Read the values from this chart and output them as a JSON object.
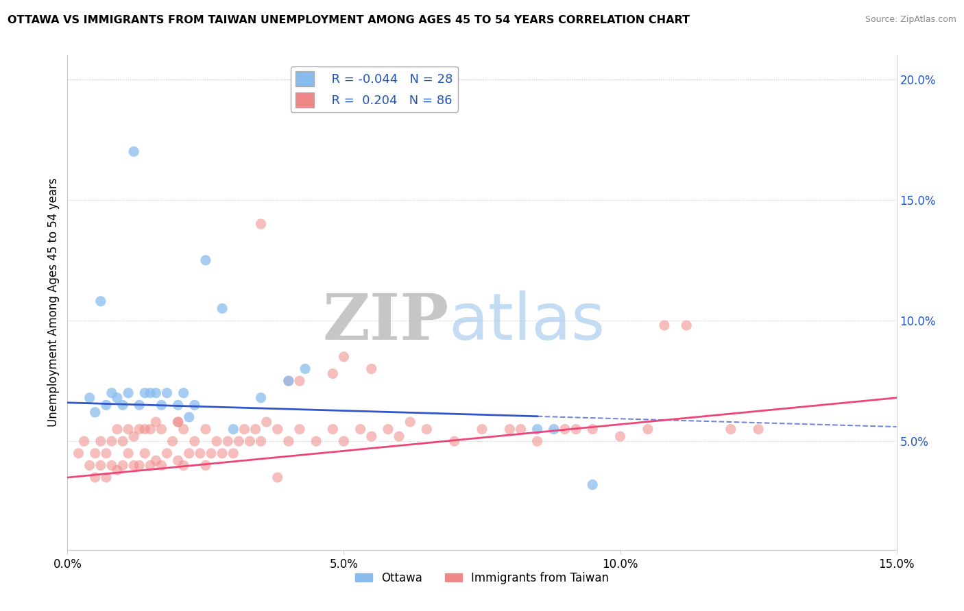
{
  "title": "OTTAWA VS IMMIGRANTS FROM TAIWAN UNEMPLOYMENT AMONG AGES 45 TO 54 YEARS CORRELATION CHART",
  "source": "Source: ZipAtlas.com",
  "xlabel_vals": [
    0.0,
    5.0,
    10.0,
    15.0
  ],
  "ylabel_vals": [
    5.0,
    10.0,
    15.0,
    20.0
  ],
  "xmin": 0.0,
  "xmax": 15.0,
  "ymin": 0.5,
  "ymax": 21.0,
  "ylabel": "Unemployment Among Ages 45 to 54 years",
  "legend_ottawa_R": "-0.044",
  "legend_ottawa_N": "28",
  "legend_taiwan_R": "0.204",
  "legend_taiwan_N": "86",
  "ottawa_color": "#88bbee",
  "taiwan_color": "#f08888",
  "ottawa_line_color": "#3355cc",
  "taiwan_line_color": "#ee4477",
  "ottawa_line_dash_color": "#88aadd",
  "ottawa_trend_start_y": 6.6,
  "ottawa_trend_end_y": 5.6,
  "taiwan_trend_start_y": 3.5,
  "taiwan_trend_end_y": 6.8,
  "ottawa_dash_start_x": 8.5,
  "ottawa_points_x": [
    1.2,
    0.6,
    1.0,
    0.4,
    0.5,
    0.7,
    0.8,
    0.9,
    1.1,
    1.3,
    1.4,
    1.5,
    1.6,
    1.7,
    1.8,
    2.0,
    2.1,
    2.2,
    2.3,
    2.5,
    2.8,
    3.0,
    3.5,
    4.0,
    4.3,
    8.5,
    8.8,
    9.5
  ],
  "ottawa_points_y": [
    17.0,
    10.8,
    6.5,
    6.8,
    6.2,
    6.5,
    7.0,
    6.8,
    7.0,
    6.5,
    7.0,
    7.0,
    7.0,
    6.5,
    7.0,
    6.5,
    7.0,
    6.0,
    6.5,
    12.5,
    10.5,
    5.5,
    6.8,
    7.5,
    8.0,
    5.5,
    5.5,
    3.2
  ],
  "taiwan_points_x": [
    0.2,
    0.3,
    0.4,
    0.5,
    0.5,
    0.6,
    0.6,
    0.7,
    0.7,
    0.8,
    0.8,
    0.9,
    0.9,
    1.0,
    1.0,
    1.1,
    1.1,
    1.2,
    1.2,
    1.3,
    1.3,
    1.4,
    1.4,
    1.5,
    1.5,
    1.6,
    1.6,
    1.7,
    1.7,
    1.8,
    1.9,
    2.0,
    2.0,
    2.1,
    2.1,
    2.2,
    2.3,
    2.4,
    2.5,
    2.5,
    2.6,
    2.7,
    2.8,
    2.9,
    3.0,
    3.1,
    3.2,
    3.3,
    3.4,
    3.5,
    3.6,
    3.8,
    4.0,
    4.2,
    4.5,
    4.8,
    5.0,
    5.3,
    5.5,
    5.8,
    6.0,
    6.5,
    7.0,
    7.5,
    8.0,
    8.5,
    9.0,
    9.5,
    10.0,
    10.8,
    11.2,
    12.0,
    12.5,
    5.0,
    4.0,
    3.5,
    4.2,
    5.5,
    4.8,
    3.8,
    2.0,
    6.2,
    8.2,
    9.2,
    10.5
  ],
  "taiwan_points_y": [
    4.5,
    5.0,
    4.0,
    4.5,
    3.5,
    4.0,
    5.0,
    3.5,
    4.5,
    4.0,
    5.0,
    3.8,
    5.5,
    4.0,
    5.0,
    4.5,
    5.5,
    4.0,
    5.2,
    4.0,
    5.5,
    4.5,
    5.5,
    4.0,
    5.5,
    4.2,
    5.8,
    4.0,
    5.5,
    4.5,
    5.0,
    4.2,
    5.8,
    4.0,
    5.5,
    4.5,
    5.0,
    4.5,
    4.0,
    5.5,
    4.5,
    5.0,
    4.5,
    5.0,
    4.5,
    5.0,
    5.5,
    5.0,
    5.5,
    5.0,
    5.8,
    5.5,
    5.0,
    5.5,
    5.0,
    5.5,
    5.0,
    5.5,
    5.2,
    5.5,
    5.2,
    5.5,
    5.0,
    5.5,
    5.5,
    5.0,
    5.5,
    5.5,
    5.2,
    9.8,
    9.8,
    5.5,
    5.5,
    8.5,
    7.5,
    14.0,
    7.5,
    8.0,
    7.8,
    3.5,
    5.8,
    5.8,
    5.5,
    5.5,
    5.5
  ]
}
